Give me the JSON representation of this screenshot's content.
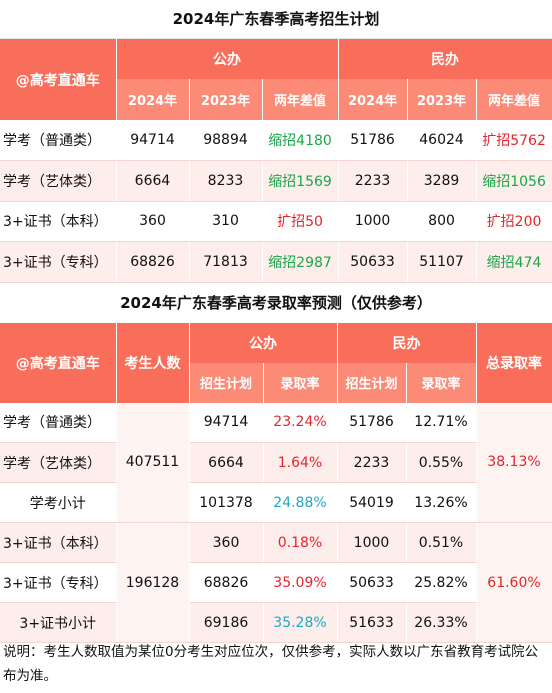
{
  "table1": {
    "title": "2024年广东春季高考招生计划",
    "brand": "@高考直通车",
    "group_public": "公办",
    "group_private": "民办",
    "col_2024": "2024年",
    "col_2023": "2023年",
    "col_diff": "两年差值",
    "rows": [
      {
        "name": "学考（普通类）",
        "p24": "94714",
        "p23": "98894",
        "pdiff": "缩招4180",
        "pdiff_color": "#1aa64a",
        "m24": "51786",
        "m23": "46024",
        "mdiff": "扩招5762",
        "mdiff_color": "#e3262c"
      },
      {
        "name": "学考（艺体类）",
        "p24": "6664",
        "p23": "8233",
        "pdiff": "缩招1569",
        "pdiff_color": "#1aa64a",
        "m24": "2233",
        "m23": "3289",
        "mdiff": "缩招1056",
        "mdiff_color": "#1aa64a"
      },
      {
        "name": "3+证书（本科）",
        "p24": "360",
        "p23": "310",
        "pdiff": "扩招50",
        "pdiff_color": "#e3262c",
        "m24": "1000",
        "m23": "800",
        "mdiff": "扩招200",
        "mdiff_color": "#e3262c"
      },
      {
        "name": "3+证书（专科）",
        "p24": "68826",
        "p23": "71813",
        "pdiff": "缩招2987",
        "pdiff_color": "#1aa64a",
        "m24": "50633",
        "m23": "51107",
        "mdiff": "缩招474",
        "mdiff_color": "#1aa64a"
      }
    ]
  },
  "table2": {
    "title": "2024年广东春季高考录取率预测（仅供参考）",
    "brand": "@高考直通车",
    "col_examinees": "考生人数",
    "group_public": "公办",
    "group_private": "民办",
    "col_total_rate": "总录取率",
    "col_plan": "招生计划",
    "col_rate": "录取率",
    "rows": [
      {
        "name": "学考（普通类）",
        "p_plan": "94714",
        "p_rate": "23.24%",
        "p_color": "#e3262c",
        "m_plan": "51786",
        "m_rate": "12.71%"
      },
      {
        "name": "学考（艺体类）",
        "p_plan": "6664",
        "p_rate": "1.64%",
        "p_color": "#e3262c",
        "m_plan": "2233",
        "m_rate": "0.55%"
      },
      {
        "name": "学考小计",
        "p_plan": "101378",
        "p_rate": "24.88%",
        "p_color": "#22a8c4",
        "m_plan": "54019",
        "m_rate": "13.26%"
      },
      {
        "name": "3+证书（本科）",
        "p_plan": "360",
        "p_rate": "0.18%",
        "p_color": "#e3262c",
        "m_plan": "1000",
        "m_rate": "0.51%"
      },
      {
        "name": "3+证书（专科）",
        "p_plan": "68826",
        "p_rate": "35.09%",
        "p_color": "#e3262c",
        "m_plan": "50633",
        "m_rate": "25.82%"
      },
      {
        "name": "3+证书小计",
        "p_plan": "69186",
        "p_rate": "35.28%",
        "p_color": "#22a8c4",
        "m_plan": "51633",
        "m_rate": "26.33%"
      }
    ],
    "examinees_academic": "407511",
    "examinees_cert": "196128",
    "total_rate_academic": "38.13%",
    "total_rate_cert": "61.60%"
  },
  "note": "说明：考生人数取值为某位0分考生对应位次，仅供参考，实际人数以广东省教育考试院公布为准。",
  "colors": {
    "header": "#f96e5a",
    "row_alt": "#fdeeec",
    "increase": "#e3262c",
    "decrease": "#1aa64a",
    "subtotal": "#22a8c4"
  }
}
